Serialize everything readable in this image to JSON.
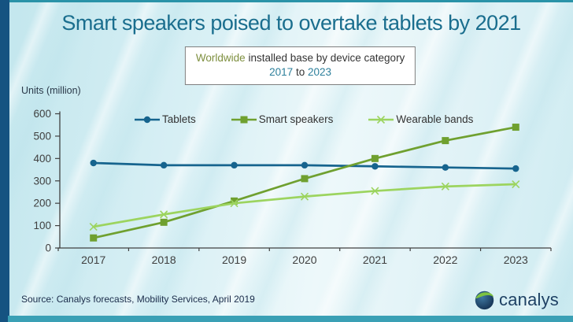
{
  "header": {
    "title": "Smart speakers poised to overtake tablets by 2021",
    "subtitle": {
      "highlight": "Worldwide",
      "rest": "installed base by device category",
      "year_from": "2017",
      "to_word": "to",
      "year_to": "2023"
    }
  },
  "chart_data": {
    "type": "line",
    "title": "Worldwide installed base by device category 2017 to 2023",
    "ylabel": "Units (million)",
    "xlabel": "",
    "categories": [
      "2017",
      "2018",
      "2019",
      "2020",
      "2021",
      "2022",
      "2023"
    ],
    "series": [
      {
        "name": "Tablets",
        "marker": "circle",
        "color": "#16648e",
        "values": [
          380,
          370,
          370,
          370,
          365,
          360,
          355
        ]
      },
      {
        "name": "Smart speakers",
        "marker": "square",
        "color": "#6fa02f",
        "values": [
          45,
          115,
          210,
          310,
          400,
          480,
          540
        ]
      },
      {
        "name": "Wearable bands",
        "marker": "x",
        "color": "#9cd45f",
        "values": [
          95,
          150,
          200,
          230,
          255,
          275,
          285
        ]
      }
    ],
    "ylim": [
      0,
      600
    ],
    "yticks": [
      0,
      100,
      200,
      300,
      400,
      500,
      600
    ],
    "grid": false,
    "legend_position": "top-inside"
  },
  "footer": {
    "source": "Source: Canalys forecasts, Mobility Services, April 2019",
    "logo_text": "canalys"
  },
  "colors": {
    "title": "#1a6e8e",
    "left_bar": "#155381",
    "top_bar": "#2a93a8",
    "bottom_bar": "#3aa0b5",
    "tablets": "#16648e",
    "smart_speakers": "#6fa02f",
    "wearable_bands": "#9cd45f",
    "subtitle_highlight": "#7e8f3f",
    "subtitle_years": "#2c7f9b",
    "axis_text": "#3f3f3f",
    "source_text": "#1b2c4a",
    "logo_blue": "#1e4164",
    "logo_green": "#7dc242"
  }
}
